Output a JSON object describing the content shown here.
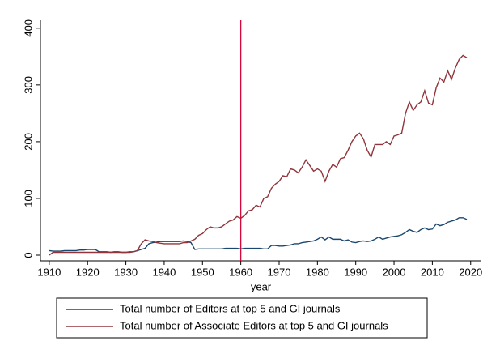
{
  "chart_data": {
    "type": "line",
    "x_label": "year",
    "x": [
      1910,
      1911,
      1912,
      1913,
      1914,
      1915,
      1916,
      1917,
      1918,
      1919,
      1920,
      1921,
      1922,
      1923,
      1924,
      1925,
      1926,
      1927,
      1928,
      1929,
      1930,
      1931,
      1932,
      1933,
      1934,
      1935,
      1936,
      1937,
      1938,
      1939,
      1940,
      1941,
      1942,
      1943,
      1944,
      1945,
      1946,
      1947,
      1948,
      1949,
      1950,
      1951,
      1952,
      1953,
      1954,
      1955,
      1956,
      1957,
      1958,
      1959,
      1960,
      1961,
      1962,
      1963,
      1964,
      1965,
      1966,
      1967,
      1968,
      1969,
      1970,
      1971,
      1972,
      1973,
      1974,
      1975,
      1976,
      1977,
      1978,
      1979,
      1980,
      1981,
      1982,
      1983,
      1984,
      1985,
      1986,
      1987,
      1988,
      1989,
      1990,
      1991,
      1992,
      1993,
      1994,
      1995,
      1996,
      1997,
      1998,
      1999,
      2000,
      2001,
      2002,
      2003,
      2004,
      2005,
      2006,
      2007,
      2008,
      2009,
      2010,
      2011,
      2012,
      2013,
      2014,
      2015,
      2016,
      2017,
      2018,
      2019
    ],
    "series": [
      {
        "name": "Total number of Editors at top 5 and GI journals",
        "color": "#1a476f",
        "values": [
          8,
          7,
          7,
          7,
          8,
          8,
          8,
          8,
          9,
          9,
          10,
          10,
          10,
          6,
          6,
          6,
          5,
          6,
          6,
          5,
          5,
          6,
          6,
          8,
          10,
          12,
          20,
          22,
          23,
          24,
          24,
          24,
          24,
          24,
          24,
          25,
          24,
          22,
          10,
          11,
          11,
          11,
          11,
          11,
          11,
          11,
          12,
          12,
          12,
          12,
          11,
          12,
          12,
          12,
          12,
          12,
          11,
          11,
          17,
          17,
          16,
          16,
          17,
          18,
          20,
          20,
          22,
          23,
          24,
          25,
          28,
          32,
          27,
          32,
          28,
          28,
          28,
          25,
          27,
          23,
          22,
          24,
          25,
          24,
          25,
          28,
          32,
          28,
          30,
          32,
          33,
          34,
          36,
          40,
          45,
          42,
          40,
          45,
          48,
          45,
          46,
          55,
          52,
          54,
          58,
          60,
          62,
          66,
          66,
          63
        ]
      },
      {
        "name": "Total number of Associate Editors at top 5 and GI journals",
        "color": "#90353b",
        "values": [
          0,
          5,
          5,
          5,
          5,
          5,
          5,
          5,
          5,
          5,
          5,
          5,
          5,
          5,
          5,
          5,
          5,
          5,
          5,
          5,
          5,
          5,
          6,
          8,
          20,
          27,
          25,
          24,
          22,
          21,
          20,
          20,
          20,
          20,
          20,
          22,
          22,
          25,
          28,
          35,
          38,
          45,
          50,
          48,
          48,
          50,
          55,
          60,
          62,
          68,
          65,
          70,
          78,
          80,
          88,
          85,
          100,
          103,
          118,
          125,
          130,
          140,
          138,
          152,
          150,
          145,
          155,
          168,
          158,
          148,
          152,
          148,
          130,
          148,
          160,
          155,
          170,
          172,
          185,
          200,
          210,
          215,
          205,
          185,
          173,
          195,
          195,
          195,
          200,
          195,
          210,
          212,
          215,
          250,
          270,
          255,
          265,
          270,
          290,
          268,
          265,
          295,
          312,
          305,
          325,
          310,
          330,
          345,
          352,
          348
        ]
      }
    ],
    "xline": 1960,
    "xline_color": "#d6083b",
    "xlim": [
      1907.7,
      2022.8
    ],
    "xticks": [
      1910,
      1920,
      1930,
      1940,
      1950,
      1960,
      1970,
      1980,
      1990,
      2000,
      2010,
      2020
    ],
    "ylim": [
      -10,
      414
    ],
    "yticks": [
      0,
      100,
      200,
      300,
      400
    ],
    "legend": "bottom"
  }
}
